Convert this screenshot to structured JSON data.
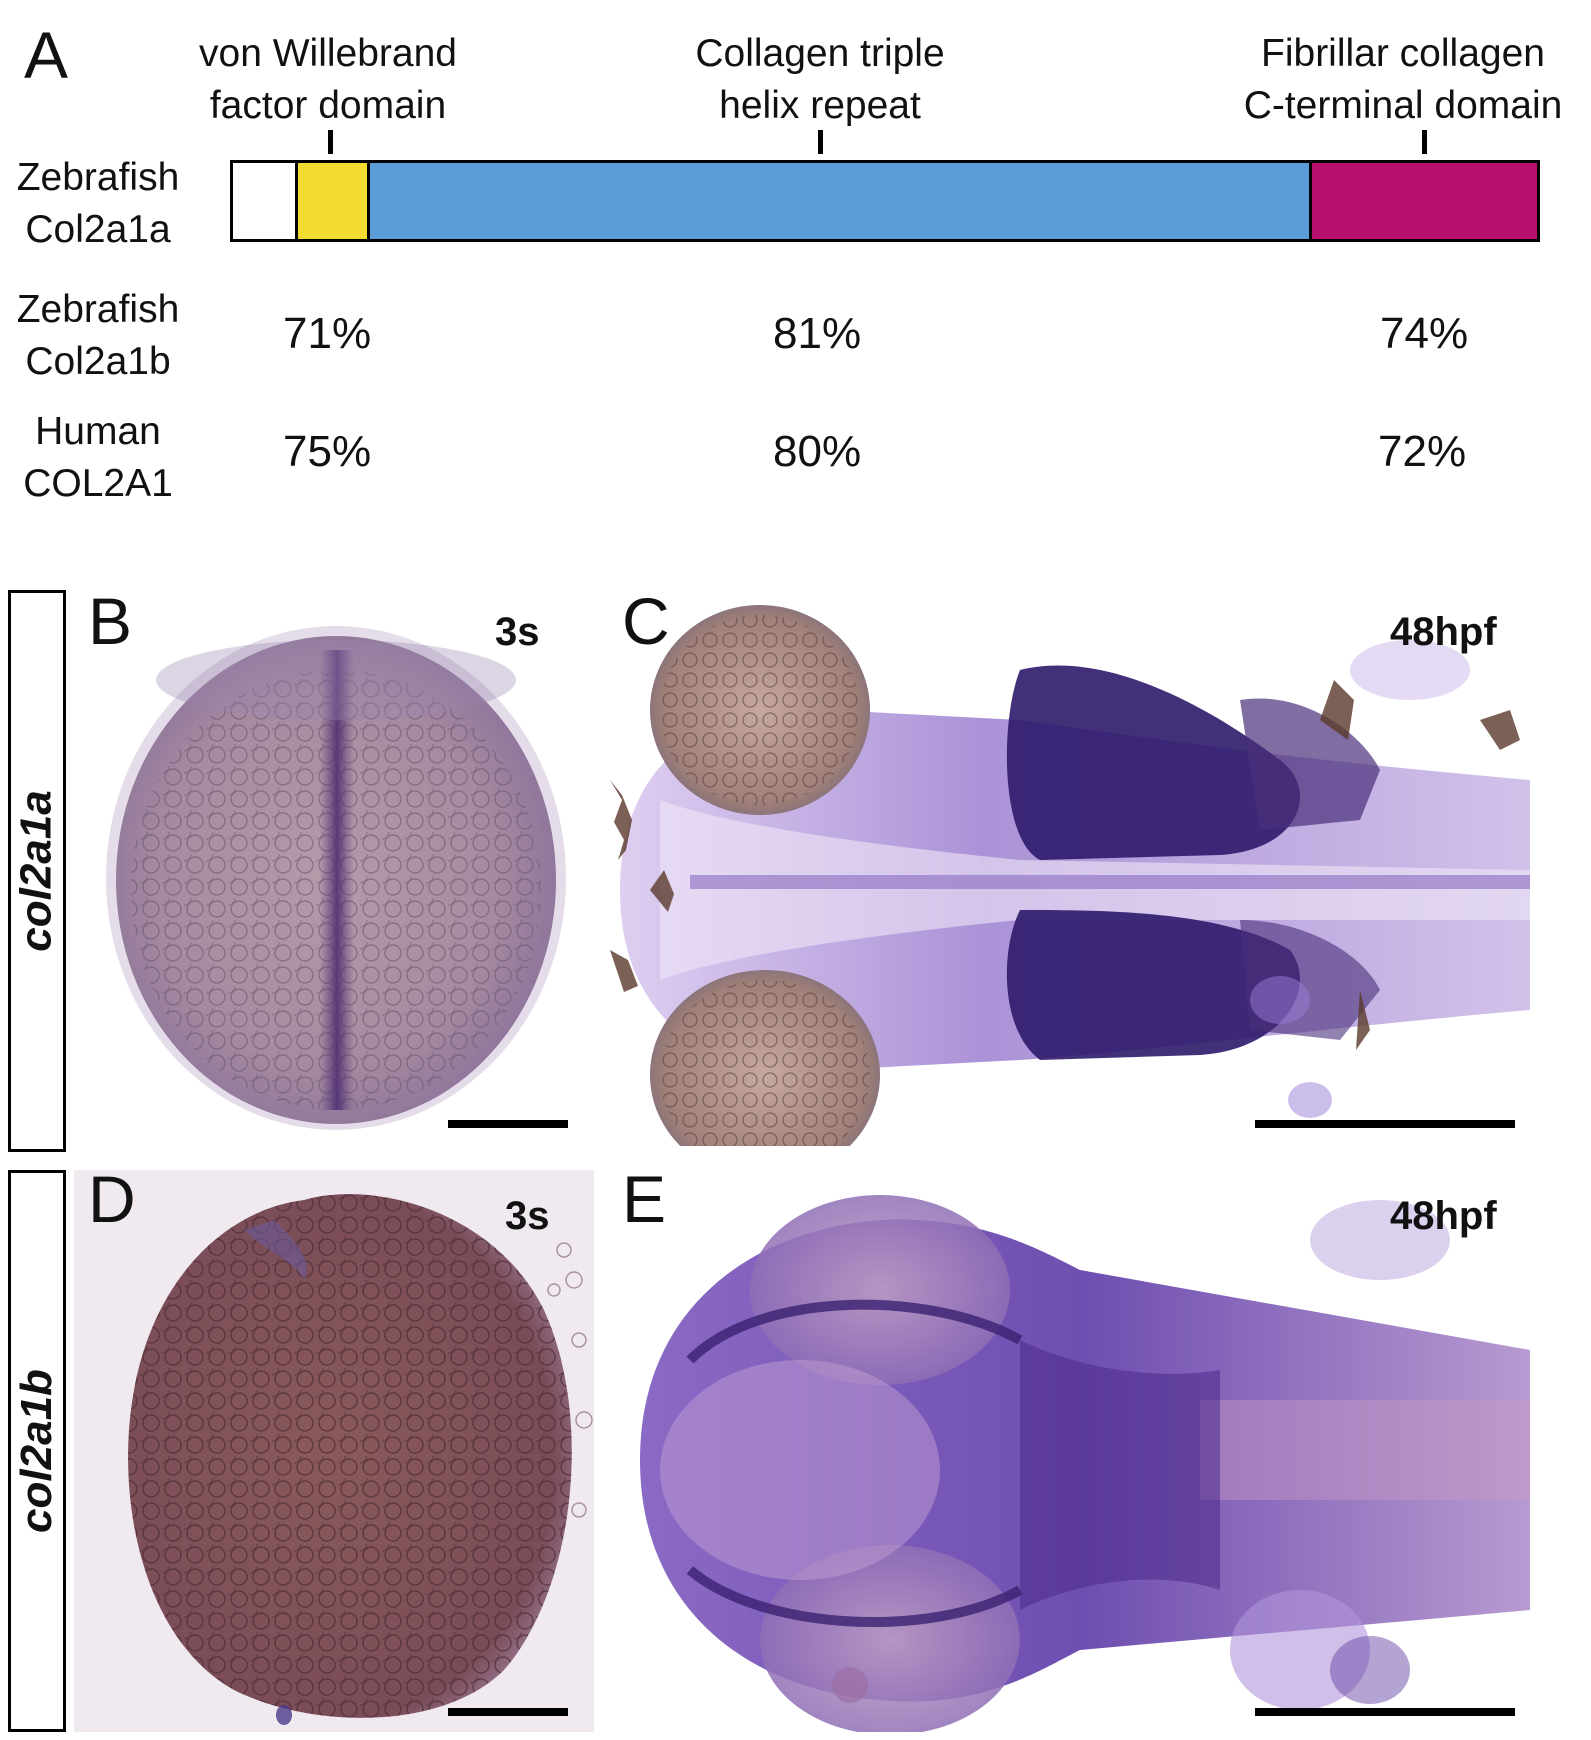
{
  "panel_a": {
    "letter": "A",
    "domains": [
      {
        "line1": "von Willebrand",
        "line2": "factor domain"
      },
      {
        "line1": "Collagen triple",
        "line2": "helix repeat"
      },
      {
        "line1": "Fibrillar collagen",
        "line2": "C-terminal domain"
      }
    ],
    "rows": [
      {
        "line1": "Zebrafish",
        "line2": "Col2a1a"
      },
      {
        "line1": "Zebrafish",
        "line2": "Col2a1b",
        "values": [
          "71%",
          "81%",
          "74%"
        ]
      },
      {
        "line1": "Human",
        "line2": "COL2A1",
        "values": [
          "75%",
          "80%",
          "72%"
        ]
      }
    ],
    "colors": {
      "vwf": "#f2dc2f",
      "triple_helix": "#5b9bd8",
      "c_terminal": "#b8106e"
    }
  },
  "panels": [
    {
      "letter": "B",
      "stage": "3s"
    },
    {
      "letter": "C",
      "stage": "48hpf"
    },
    {
      "letter": "D",
      "stage": "3s"
    },
    {
      "letter": "E",
      "stage": "48hpf"
    }
  ],
  "gene_labels": [
    "col2a1a",
    "col2a1b"
  ]
}
